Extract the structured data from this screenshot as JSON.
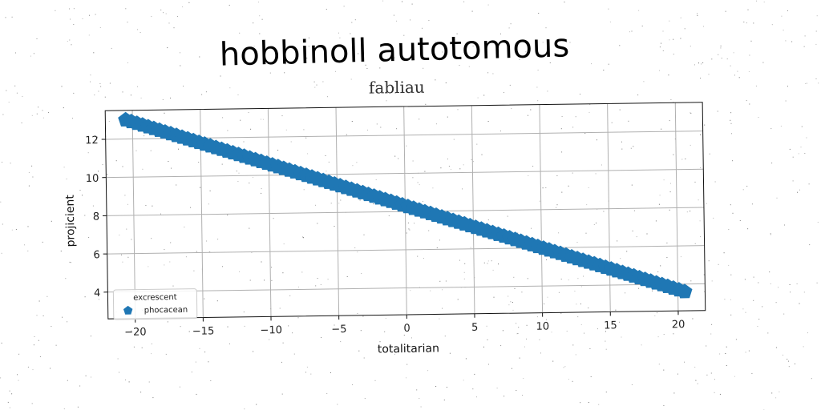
{
  "chart_data": {
    "type": "scatter",
    "title": "hobbinoll autotomous",
    "subtitle": "fabliau",
    "xlabel": "totalitarian",
    "ylabel": "projicient",
    "xlim": [
      -22,
      22
    ],
    "ylim": [
      2.6,
      13.5
    ],
    "xticks": [
      -20,
      -15,
      -10,
      -5,
      0,
      5,
      10,
      15,
      20
    ],
    "yticks": [
      4,
      6,
      8,
      10,
      12
    ],
    "grid": true,
    "legend": {
      "title": "excrescent",
      "position": "lower-left"
    },
    "series": [
      {
        "name": "phocacean",
        "marker": "pentagon",
        "color": "#1f77b4",
        "x_start": -20.5,
        "x_end": 20.5,
        "n_points": 100,
        "y_at_x_start": 13.0,
        "y_at_x_end": 3.6
      }
    ]
  }
}
